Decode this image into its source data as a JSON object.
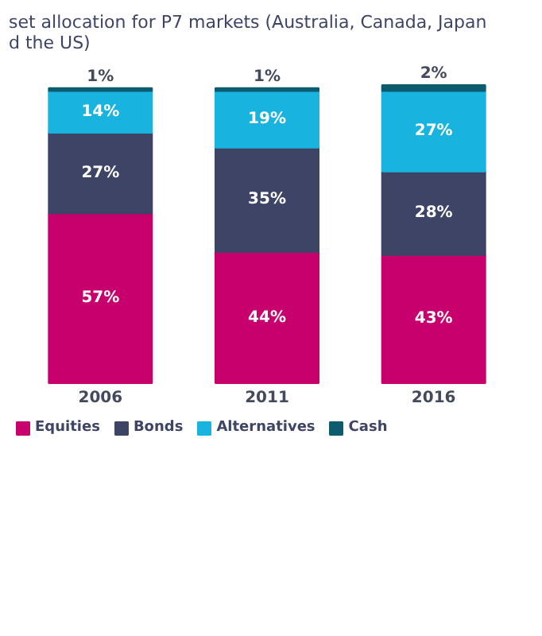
{
  "chart_data": {
    "type": "bar",
    "title": "set allocation for P7 markets (Australia, Canada, Japan\nd the US)",
    "categories": [
      "2006",
      "2011",
      "2016"
    ],
    "stacked": true,
    "legend": "bottom",
    "series": [
      {
        "name": "Equities",
        "color": "#c8006e",
        "values": [
          57,
          44,
          43
        ],
        "value_labels": [
          "57%",
          "44%",
          "43%"
        ]
      },
      {
        "name": "Bonds",
        "color": "#3d4466",
        "values": [
          27,
          35,
          28
        ],
        "value_labels": [
          "27%",
          "35%",
          "28%"
        ]
      },
      {
        "name": "Alternatives",
        "color": "#19b3e0",
        "values": [
          14,
          19,
          27
        ],
        "value_labels": [
          "14%",
          "19%",
          "27%"
        ]
      },
      {
        "name": "Cash",
        "color": "#0d5c6e",
        "values": [
          1,
          1,
          2
        ],
        "value_labels": [
          "1%",
          "1%",
          "2%"
        ]
      }
    ]
  }
}
